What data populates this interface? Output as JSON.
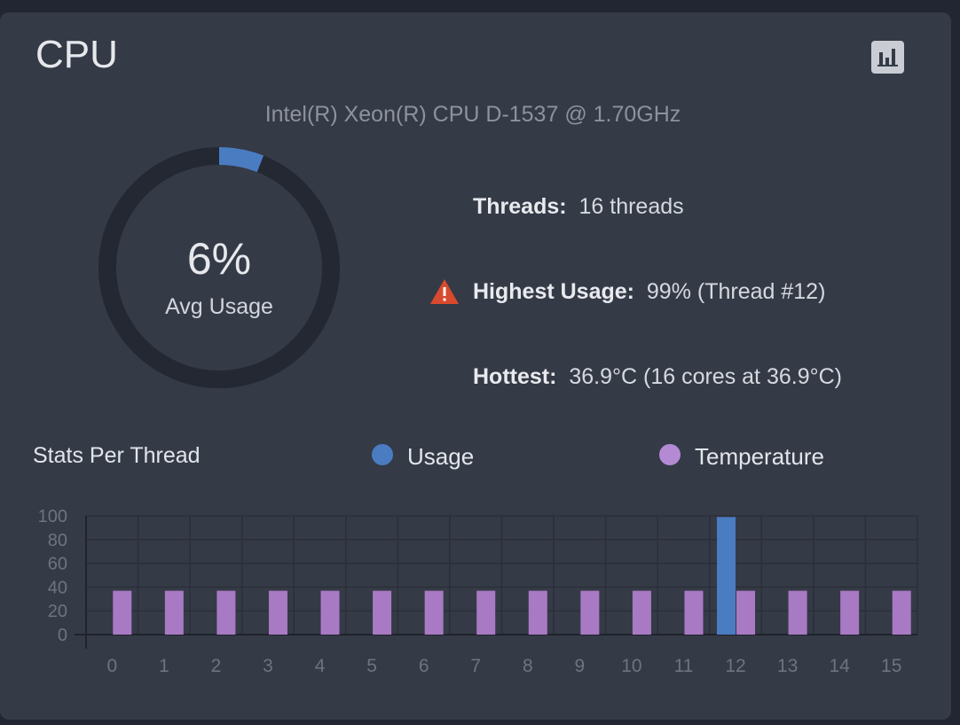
{
  "card": {
    "title": "CPU",
    "chart_button_icon": "bar-chart-icon",
    "cpu_model": "Intel(R) Xeon(R) CPU D-1537 @ 1.70GHz"
  },
  "gauge": {
    "value_text": "6%",
    "label": "Avg Usage",
    "value_fraction": 0.06,
    "track_color": "#242833",
    "fill_color": "#4a7cc2"
  },
  "stats": {
    "threads_label": "Threads:",
    "threads_value": "16 threads",
    "highest_label": "Highest Usage:",
    "highest_value": "99%  (Thread #12)",
    "highest_icon": "warning-triangle-icon",
    "hottest_label": "Hottest:",
    "hottest_value": "36.9°C  (16 cores at 36.9°C)"
  },
  "legend": {
    "title": "Stats Per Thread",
    "usage": "Usage",
    "temperature": "Temperature",
    "usage_color": "#4a7cc2",
    "temperature_color": "#b58ad4"
  },
  "chart_data": {
    "type": "bar",
    "categories": [
      "0",
      "1",
      "2",
      "3",
      "4",
      "5",
      "6",
      "7",
      "8",
      "9",
      "10",
      "11",
      "12",
      "13",
      "14",
      "15"
    ],
    "series": [
      {
        "name": "Usage",
        "color": "#4a7cc2",
        "values": [
          0,
          0,
          0,
          0,
          0,
          0,
          0,
          0,
          0,
          0,
          0,
          0,
          99,
          0,
          0,
          0
        ]
      },
      {
        "name": "Temperature",
        "color": "#a87ac4",
        "values": [
          36.9,
          36.9,
          36.9,
          36.9,
          36.9,
          36.9,
          36.9,
          36.9,
          36.9,
          36.9,
          36.9,
          36.9,
          36.9,
          36.9,
          36.9,
          36.9
        ]
      }
    ],
    "ylim": [
      0,
      100
    ],
    "yticks": [
      0,
      20,
      40,
      60,
      80,
      100
    ],
    "grid": true,
    "legend": "top"
  }
}
